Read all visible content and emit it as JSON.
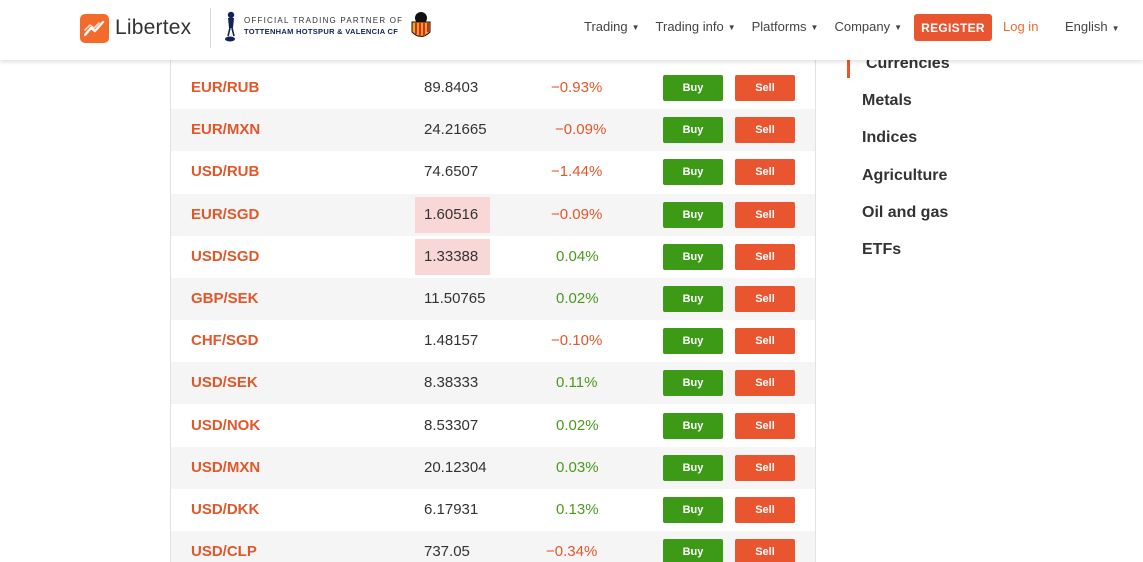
{
  "header": {
    "brand": "Libertex",
    "partner_line1": "OFFICIAL TRADING PARTNER OF",
    "partner_line2": "TOTTENHAM HOTSPUR & VALENCIA CF",
    "nav": [
      "Trading",
      "Trading info",
      "Platforms",
      "Company"
    ],
    "register_label": "REGISTER",
    "login_label": "Log in",
    "language": "English"
  },
  "colors": {
    "accent": "#e8552e",
    "buy": "#3c9a16",
    "negative": "#e2572a",
    "positive": "#4a9a1c"
  },
  "table": {
    "buy_label": "Buy",
    "sell_label": "Sell",
    "rows": [
      {
        "symbol": "EUR/RUB",
        "price": "89.8403",
        "change": "−0.93%",
        "dir": "neg",
        "highlight": false
      },
      {
        "symbol": "EUR/MXN",
        "price": "24.21665",
        "change": "−0.09%",
        "dir": "neg",
        "highlight": false
      },
      {
        "symbol": "USD/RUB",
        "price": "74.6507",
        "change": "−1.44%",
        "dir": "neg",
        "highlight": false
      },
      {
        "symbol": "EUR/SGD",
        "price": "1.60516",
        "change": "−0.09%",
        "dir": "neg",
        "highlight": true
      },
      {
        "symbol": "USD/SGD",
        "price": "1.33388",
        "change": "0.04%",
        "dir": "pos",
        "highlight": true
      },
      {
        "symbol": "GBP/SEK",
        "price": "11.50765",
        "change": "0.02%",
        "dir": "pos",
        "highlight": false
      },
      {
        "symbol": "CHF/SGD",
        "price": "1.48157",
        "change": "−0.10%",
        "dir": "neg",
        "highlight": false
      },
      {
        "symbol": "USD/SEK",
        "price": "8.38333",
        "change": "0.11%",
        "dir": "pos",
        "highlight": false
      },
      {
        "symbol": "USD/NOK",
        "price": "8.53307",
        "change": "0.02%",
        "dir": "pos",
        "highlight": false
      },
      {
        "symbol": "USD/MXN",
        "price": "20.12304",
        "change": "0.03%",
        "dir": "pos",
        "highlight": false
      },
      {
        "symbol": "USD/DKK",
        "price": "6.17931",
        "change": "0.13%",
        "dir": "pos",
        "highlight": false
      },
      {
        "symbol": "USD/CLP",
        "price": "737.05",
        "change": "−0.34%",
        "dir": "neg",
        "highlight": false
      }
    ]
  },
  "sidebar": {
    "active": "Currencies",
    "items": [
      "Currencies",
      "Metals",
      "Indices",
      "Agriculture",
      "Oil and gas",
      "ETFs"
    ]
  }
}
